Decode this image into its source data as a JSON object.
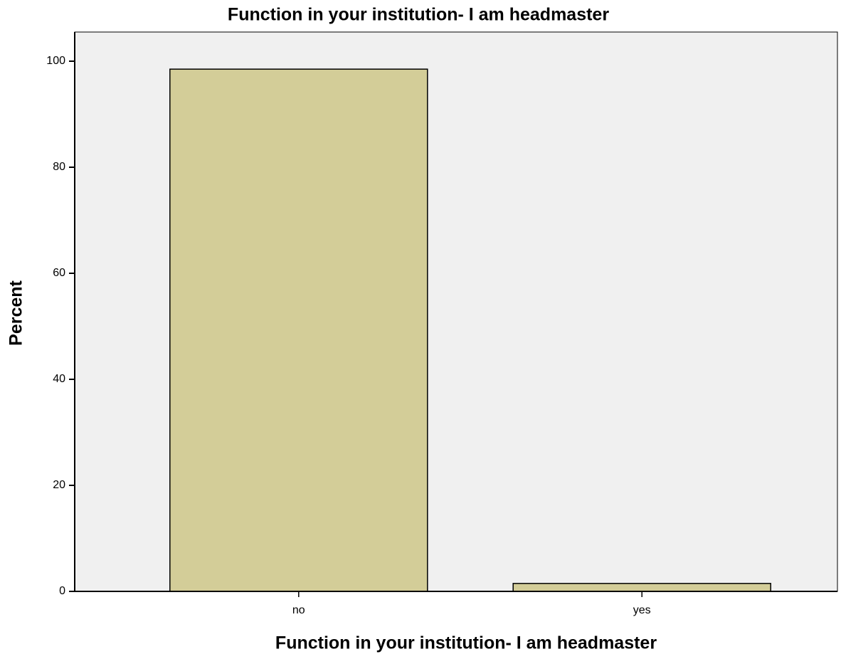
{
  "chart_data": {
    "type": "bar",
    "title": "Function in your institution- I am headmaster",
    "x_label": "Function in your institution- I am headmaster",
    "y_label": "Percent",
    "categories": [
      "no",
      "yes"
    ],
    "values": [
      98.5,
      1.5
    ],
    "color": "#d3cd98",
    "ylim": [
      0,
      105.5
    ],
    "yticks": [
      0,
      20,
      40,
      60,
      80,
      100
    ],
    "grid": false
  }
}
